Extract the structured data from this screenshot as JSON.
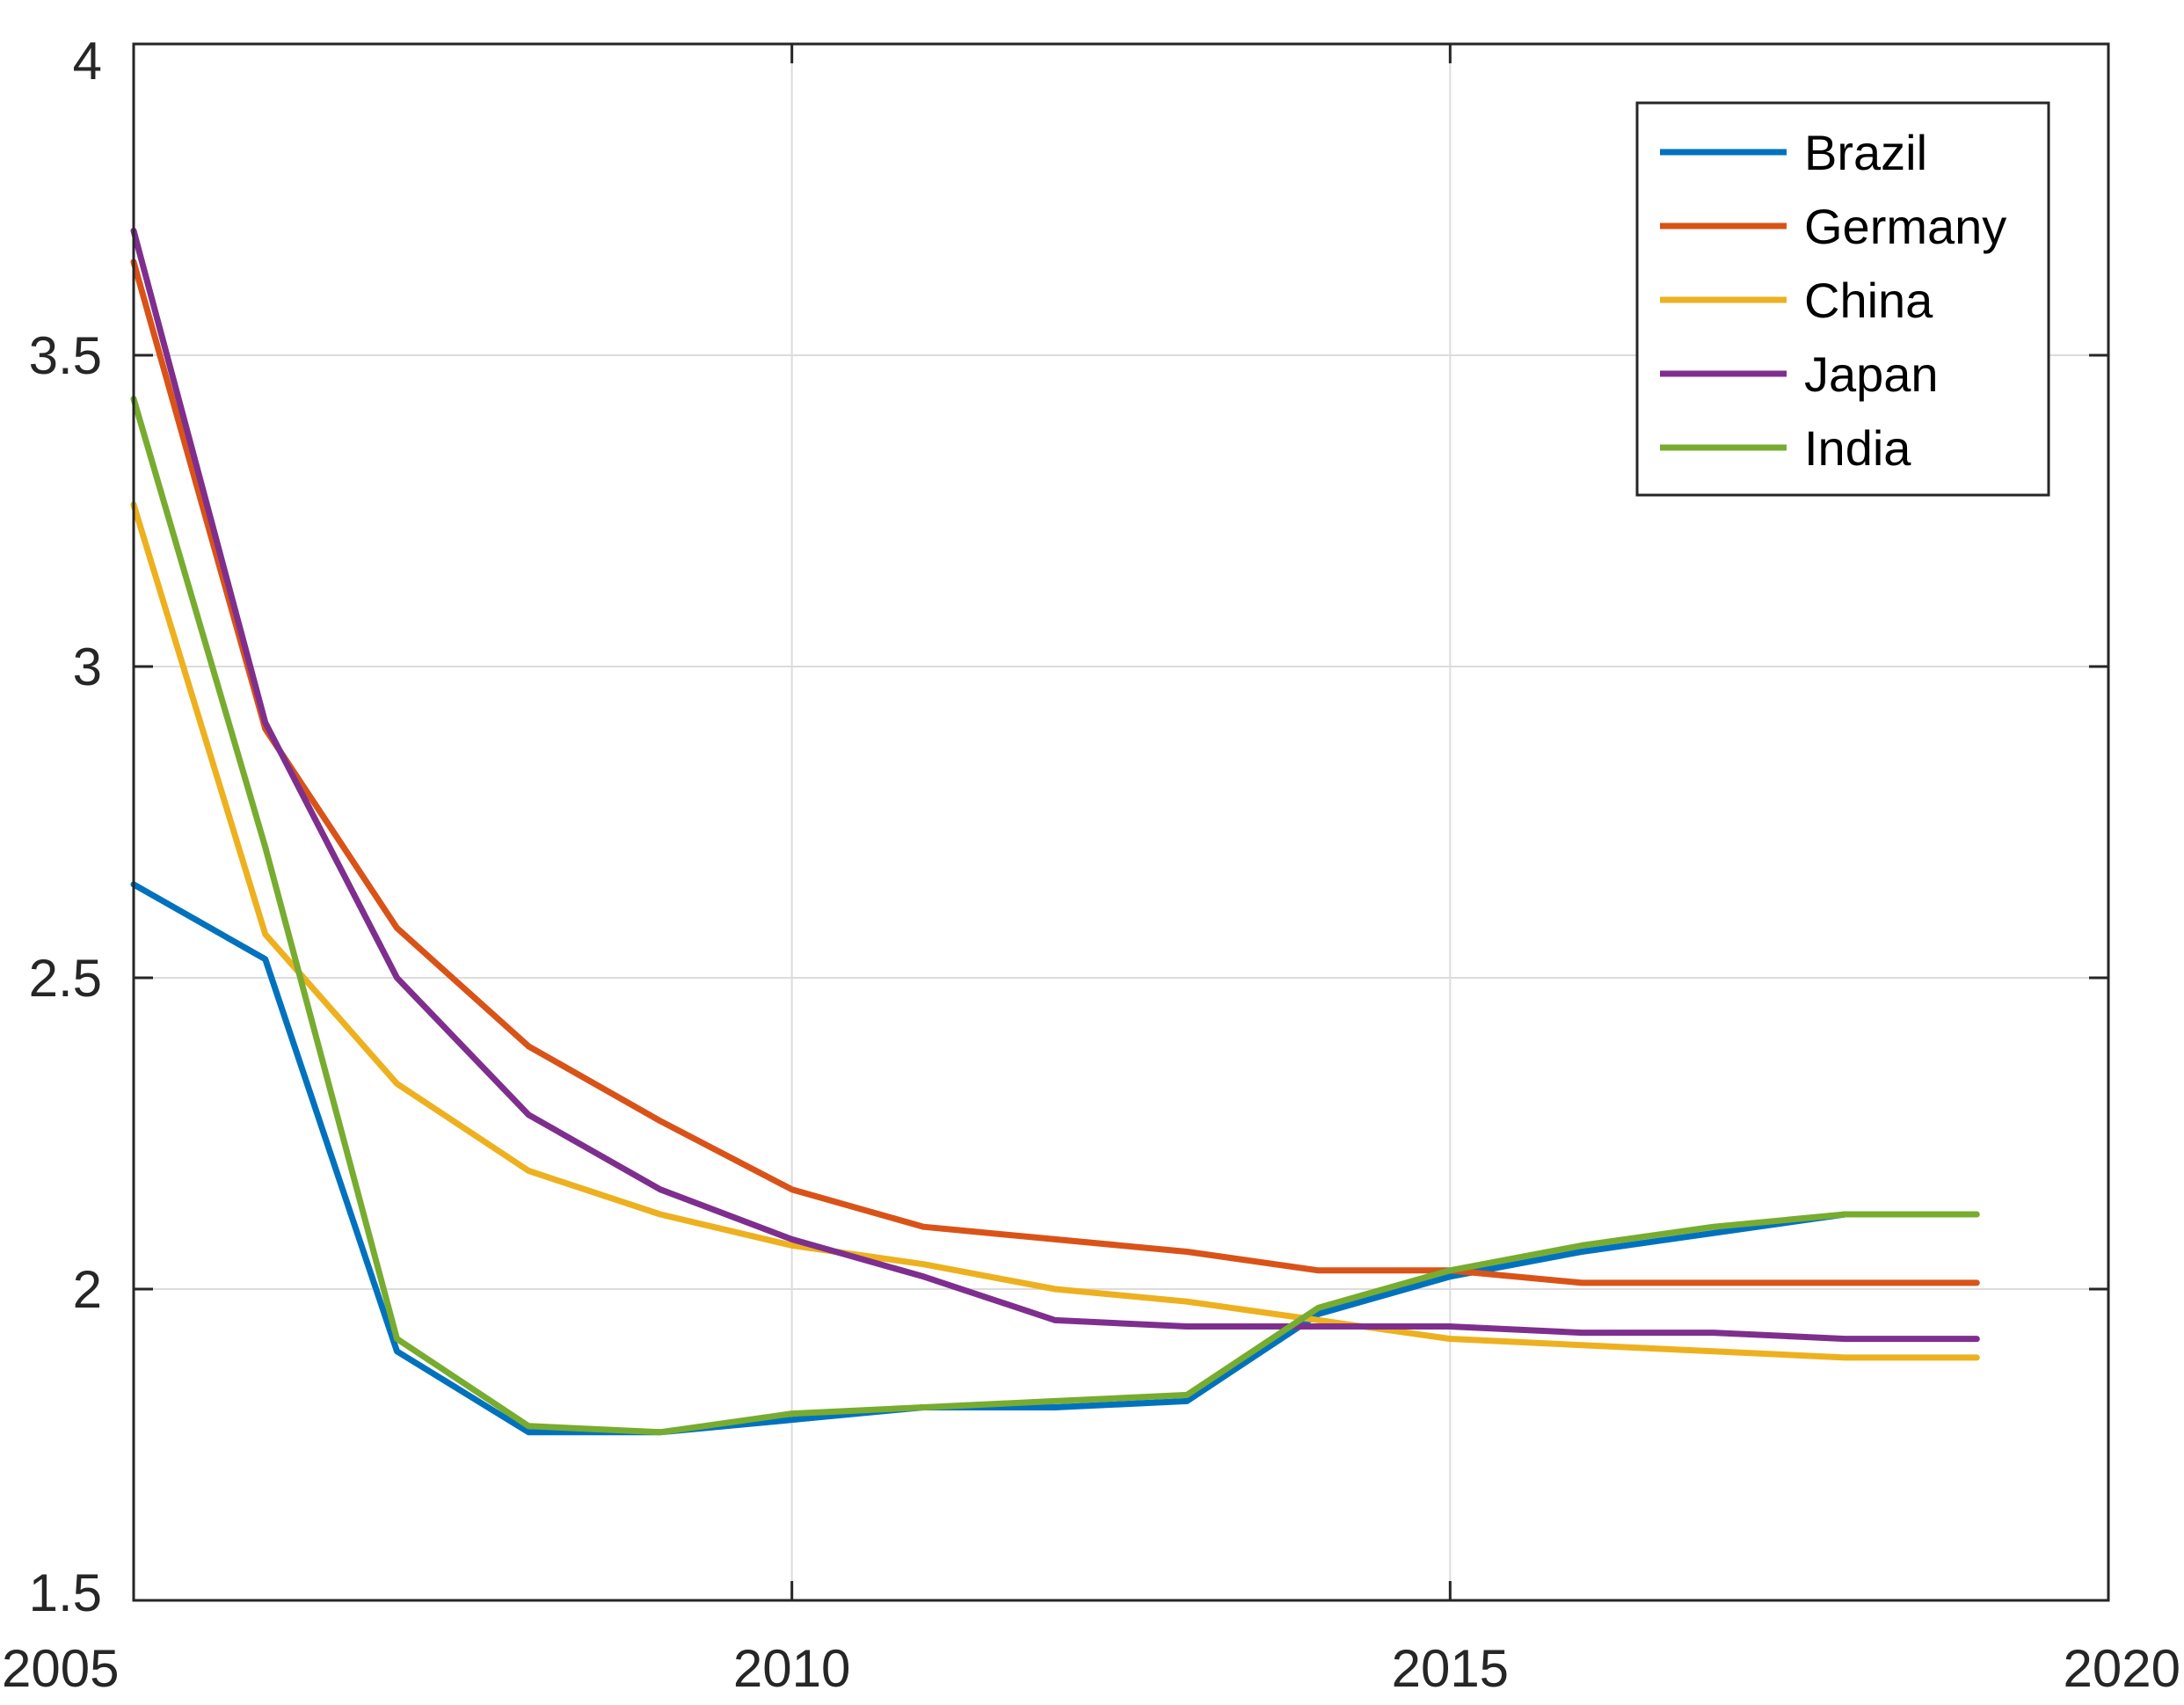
{
  "chart_data": {
    "type": "line",
    "x": [
      2005,
      2006,
      2007,
      2008,
      2009,
      2010,
      2011,
      2012,
      2013,
      2014,
      2015,
      2016,
      2017,
      2018,
      2019
    ],
    "series": [
      {
        "name": "Brazil",
        "color": "#0072BD",
        "values": [
          2.65,
          2.53,
          1.9,
          1.77,
          1.77,
          1.79,
          1.81,
          1.81,
          1.82,
          1.96,
          2.02,
          2.06,
          2.09,
          2.12,
          null
        ]
      },
      {
        "name": "Germany",
        "color": "#D95319",
        "values": [
          3.65,
          2.9,
          2.58,
          2.39,
          2.27,
          2.16,
          2.1,
          2.08,
          2.06,
          2.03,
          2.03,
          2.01,
          2.01,
          2.01,
          2.01
        ]
      },
      {
        "name": "China",
        "color": "#EDB120",
        "values": [
          3.26,
          2.57,
          2.33,
          2.19,
          2.12,
          2.07,
          2.04,
          2.0,
          1.98,
          1.95,
          1.92,
          1.91,
          1.9,
          1.89,
          1.89
        ]
      },
      {
        "name": "Japan",
        "color": "#7E2F8E",
        "values": [
          3.7,
          2.91,
          2.5,
          2.28,
          2.16,
          2.08,
          2.02,
          1.95,
          1.94,
          1.94,
          1.94,
          1.93,
          1.93,
          1.92,
          1.92
        ]
      },
      {
        "name": "India",
        "color": "#77AC30",
        "values": [
          3.43,
          2.71,
          1.92,
          1.78,
          1.77,
          1.8,
          1.81,
          1.82,
          1.83,
          1.97,
          2.03,
          2.07,
          2.1,
          2.12,
          2.12
        ]
      }
    ],
    "xlim": [
      2005,
      2020
    ],
    "ylim": [
      1.5,
      4
    ],
    "xticks": [
      2005,
      2010,
      2015,
      2020
    ],
    "yticks": [
      1.5,
      2,
      2.5,
      3,
      3.5,
      4
    ],
    "xtick_labels": [
      "2005",
      "2010",
      "2015",
      "2020"
    ],
    "ytick_labels": [
      "1.5",
      "2",
      "2.5",
      "3",
      "3.5",
      "4"
    ],
    "grid": true,
    "legend_position": "top-right",
    "title": "",
    "xlabel": "",
    "ylabel": ""
  }
}
